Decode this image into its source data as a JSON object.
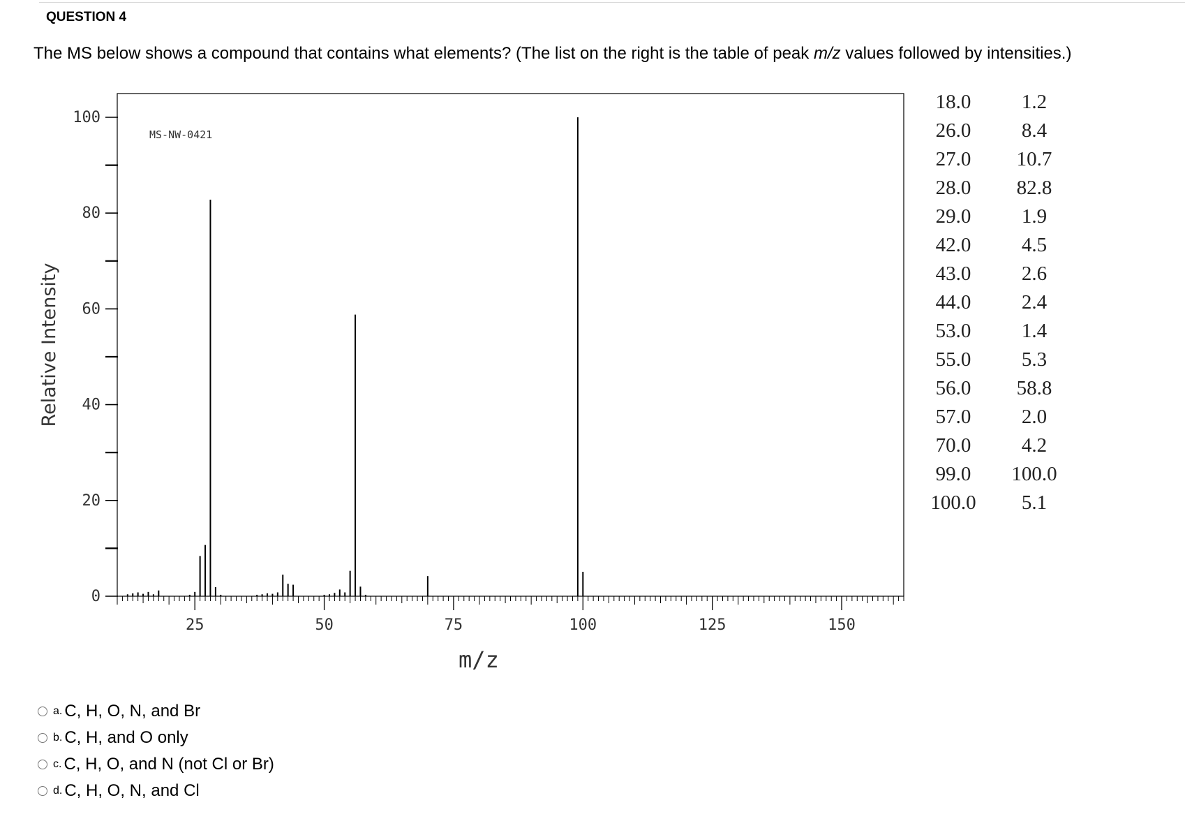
{
  "question": {
    "header": "QUESTION 4",
    "text_before": "The MS below shows a compound that contains what elements?  (The list on the right is the table of peak ",
    "text_italic": "m/z",
    "text_after": " values followed by intensities.)"
  },
  "chart_data": {
    "type": "bar",
    "title": "MS-NW-0421",
    "xlabel": "m/z",
    "ylabel": "Relative Intensity",
    "xlim": [
      10,
      162
    ],
    "ylim": [
      0,
      100
    ],
    "x_ticks": [
      25,
      50,
      75,
      100,
      125,
      150
    ],
    "y_ticks": [
      0,
      20,
      40,
      60,
      80,
      100
    ],
    "grid": false,
    "peaks": [
      {
        "mz": 12,
        "intensity": 0.4
      },
      {
        "mz": 13,
        "intensity": 0.6
      },
      {
        "mz": 14,
        "intensity": 0.8
      },
      {
        "mz": 15,
        "intensity": 0.5
      },
      {
        "mz": 16,
        "intensity": 0.9
      },
      {
        "mz": 17,
        "intensity": 0.4
      },
      {
        "mz": 18,
        "intensity": 1.2
      },
      {
        "mz": 24,
        "intensity": 0.3
      },
      {
        "mz": 25,
        "intensity": 0.9
      },
      {
        "mz": 26,
        "intensity": 8.4
      },
      {
        "mz": 27,
        "intensity": 10.7
      },
      {
        "mz": 28,
        "intensity": 82.8
      },
      {
        "mz": 29,
        "intensity": 1.9
      },
      {
        "mz": 30,
        "intensity": 0.3
      },
      {
        "mz": 37,
        "intensity": 0.3
      },
      {
        "mz": 38,
        "intensity": 0.4
      },
      {
        "mz": 39,
        "intensity": 0.6
      },
      {
        "mz": 40,
        "intensity": 0.5
      },
      {
        "mz": 41,
        "intensity": 0.8
      },
      {
        "mz": 42,
        "intensity": 4.5
      },
      {
        "mz": 43,
        "intensity": 2.6
      },
      {
        "mz": 44,
        "intensity": 2.4
      },
      {
        "mz": 50,
        "intensity": 0.3
      },
      {
        "mz": 51,
        "intensity": 0.4
      },
      {
        "mz": 52,
        "intensity": 0.7
      },
      {
        "mz": 53,
        "intensity": 1.4
      },
      {
        "mz": 54,
        "intensity": 0.8
      },
      {
        "mz": 55,
        "intensity": 5.3
      },
      {
        "mz": 56,
        "intensity": 58.8
      },
      {
        "mz": 57,
        "intensity": 2.0
      },
      {
        "mz": 58,
        "intensity": 0.3
      },
      {
        "mz": 70,
        "intensity": 4.2
      },
      {
        "mz": 99,
        "intensity": 100.0
      },
      {
        "mz": 100,
        "intensity": 5.1
      }
    ]
  },
  "peak_table": [
    {
      "mz": "18.0",
      "intensity": "1.2"
    },
    {
      "mz": "26.0",
      "intensity": "8.4"
    },
    {
      "mz": "27.0",
      "intensity": "10.7"
    },
    {
      "mz": "28.0",
      "intensity": "82.8"
    },
    {
      "mz": "29.0",
      "intensity": "1.9"
    },
    {
      "mz": "42.0",
      "intensity": "4.5"
    },
    {
      "mz": "43.0",
      "intensity": "2.6"
    },
    {
      "mz": "44.0",
      "intensity": "2.4"
    },
    {
      "mz": "53.0",
      "intensity": "1.4"
    },
    {
      "mz": "55.0",
      "intensity": "5.3"
    },
    {
      "mz": "56.0",
      "intensity": "58.8"
    },
    {
      "mz": "57.0",
      "intensity": "2.0"
    },
    {
      "mz": "70.0",
      "intensity": "4.2"
    },
    {
      "mz": "99.0",
      "intensity": "100.0"
    },
    {
      "mz": "100.0",
      "intensity": "5.1"
    }
  ],
  "options": [
    {
      "letter": "a.",
      "text": "C, H, O, N, and Br"
    },
    {
      "letter": "b.",
      "text": "C, H, and O only"
    },
    {
      "letter": "c.",
      "text": "C, H, O, and N (not Cl or Br)"
    },
    {
      "letter": "d.",
      "text": "C, H, O, N, and Cl"
    }
  ]
}
